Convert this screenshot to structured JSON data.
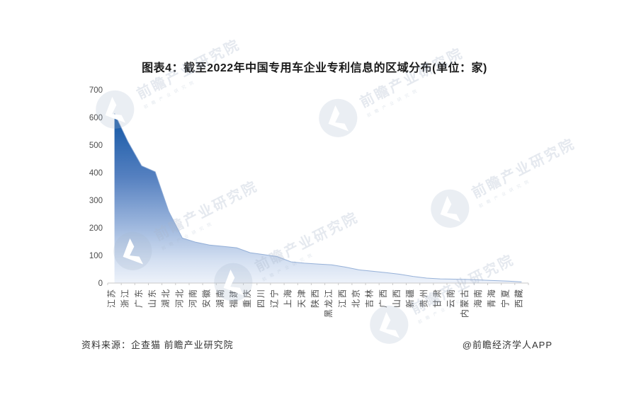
{
  "page": {
    "title": "图表4：截至2022年中国专用车企业专利信息的区域分布(单位：家)",
    "source_note": "资料来源：企查猫 前瞻产业研究院",
    "credit": "@前瞻经济学人APP",
    "watermark_text": "前瞻产业研究院"
  },
  "chart_data": {
    "type": "area",
    "title": "图表4：截至2022年中国专用车企业专利信息的区域分布(单位：家)",
    "unit": "家",
    "categories": [
      "江苏",
      "浙江",
      "广东",
      "山东",
      "湖北",
      "河北",
      "河南",
      "安徽",
      "湖南",
      "福建",
      "重庆",
      "四川",
      "辽宁",
      "上海",
      "天津",
      "陕西",
      "黑龙江",
      "江西",
      "北京",
      "吉林",
      "广西",
      "山西",
      "新疆",
      "贵州",
      "甘肃",
      "云南",
      "内蒙古",
      "海南",
      "青海",
      "宁夏",
      "西藏"
    ],
    "values": [
      615,
      512,
      425,
      403,
      260,
      163,
      148,
      138,
      133,
      128,
      110,
      103,
      96,
      77,
      72,
      69,
      66,
      58,
      48,
      43,
      38,
      32,
      24,
      18,
      15,
      14,
      13,
      11,
      9,
      7,
      4
    ],
    "xlabel": "",
    "ylabel": "",
    "ylim": [
      0,
      700
    ],
    "ytick_interval": 100,
    "yticks": [
      0,
      100,
      200,
      300,
      400,
      500,
      600,
      700
    ],
    "grid": false,
    "legend_position": "none",
    "colors": {
      "area_top": "#1a56a4",
      "area_upper": "#2160ab",
      "area_mid": "#5580c0",
      "area_light": "#9cb6dd",
      "area_bottom": "#edf2fa",
      "edge_line": "#87a6d2",
      "axis_line": "#c9c9c9",
      "tick_label": "#4d4d4d"
    }
  }
}
